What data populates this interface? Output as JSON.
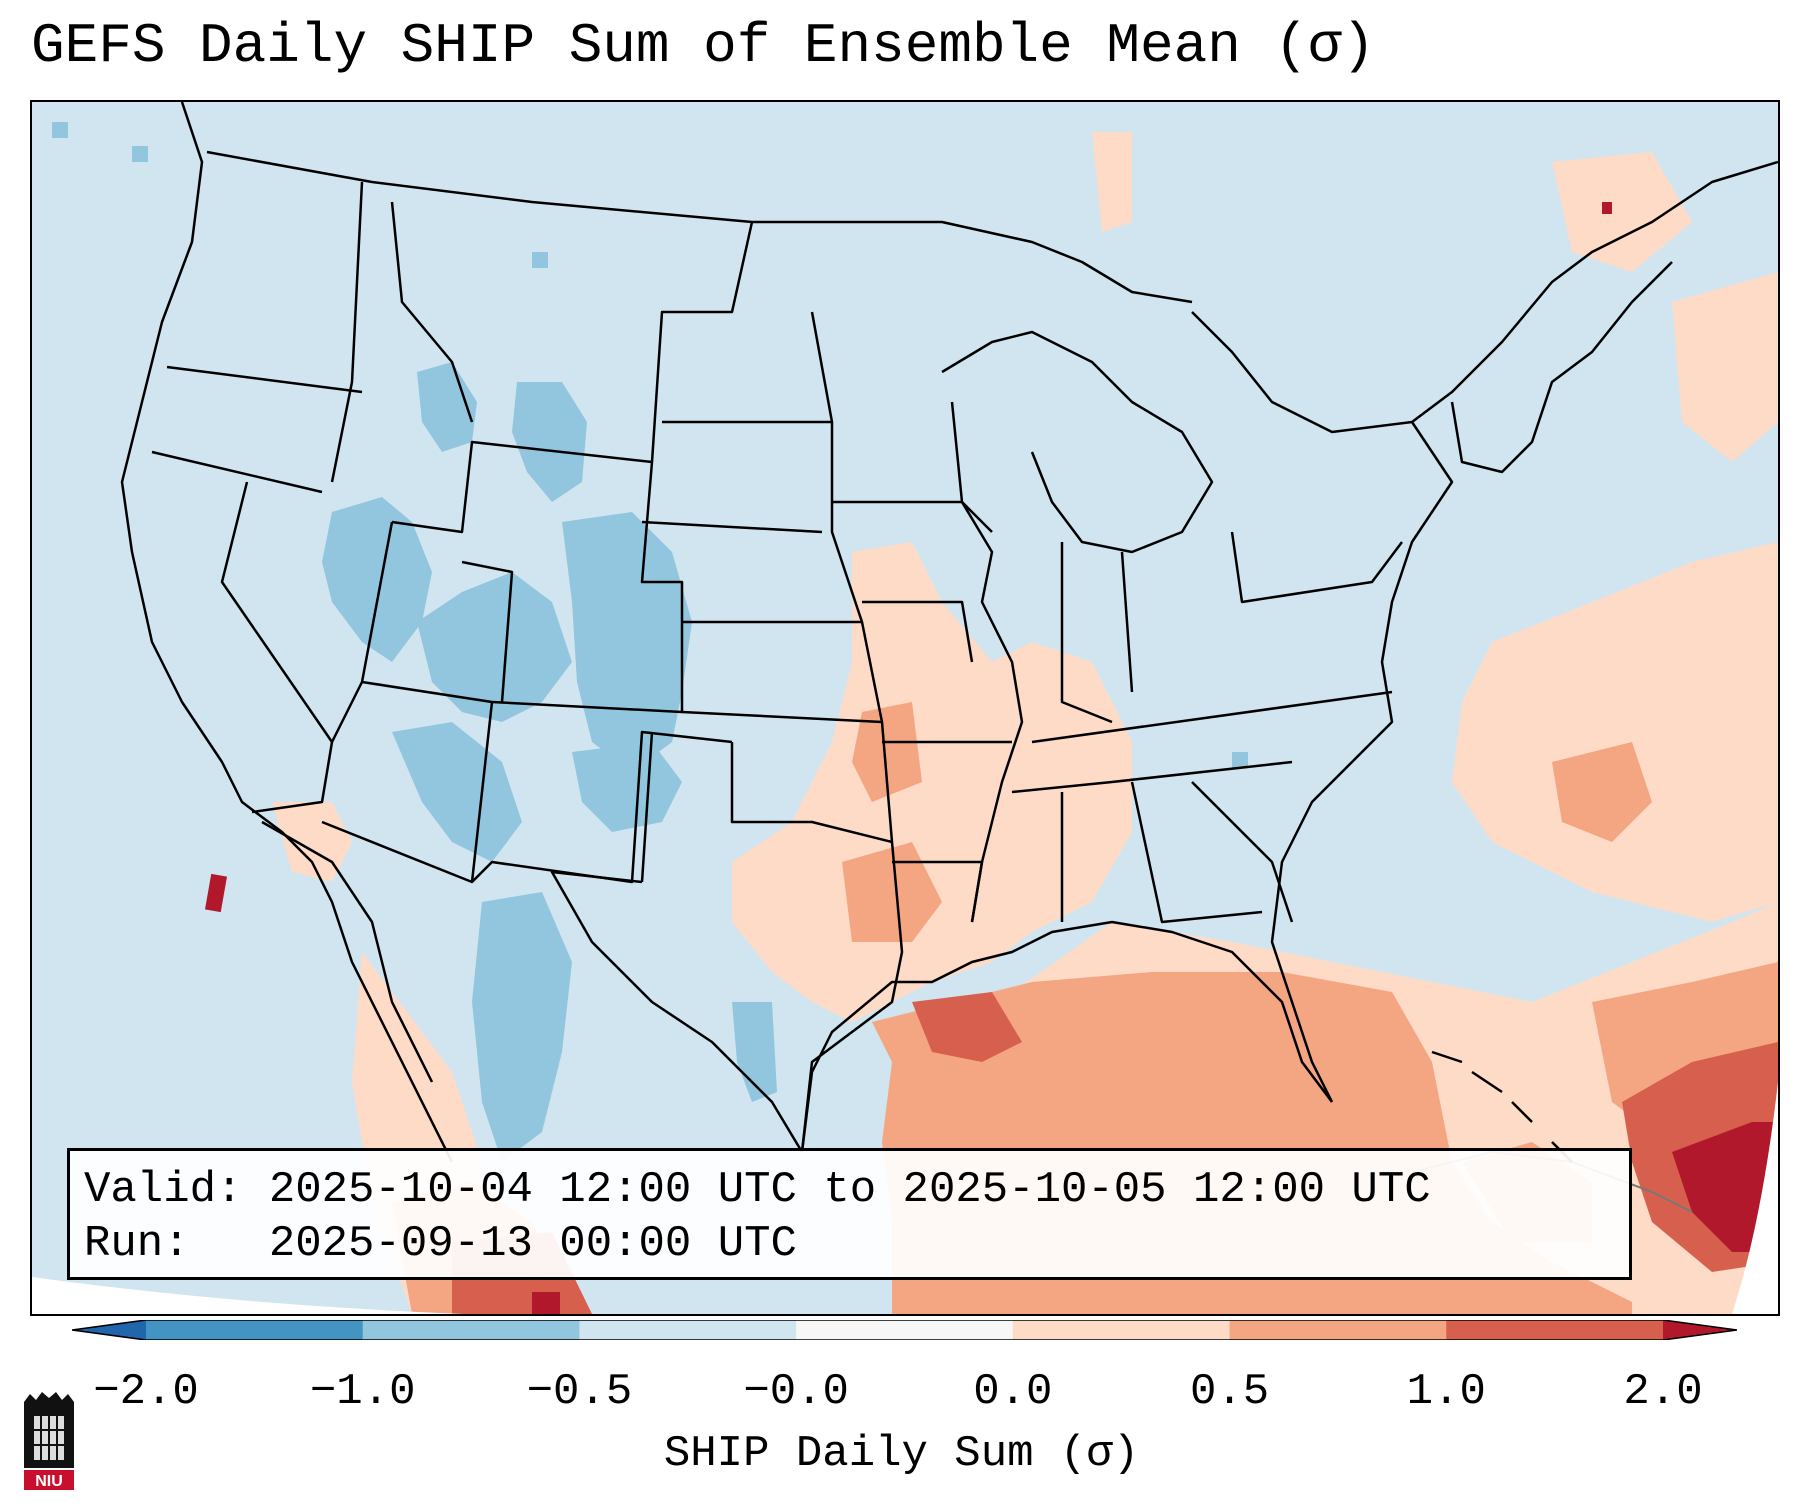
{
  "title": "GEFS Daily SHIP Sum of Ensemble Mean (σ)",
  "info": {
    "valid_label": "Valid:",
    "valid_value": "2025-10-04 12:00 UTC to 2025-10-05 12:00 UTC",
    "run_label": "Run:",
    "run_value": "2025-09-13 00:00 UTC"
  },
  "colorbar": {
    "label": "SHIP Daily Sum (σ)",
    "ticks": [
      "−2.0",
      "−1.0",
      "−0.5",
      "−0.0",
      "0.0",
      "0.5",
      "1.0",
      "2.0"
    ],
    "colors": [
      "#4393c3",
      "#92c5de",
      "#d1e5f0",
      "#f7f7f7",
      "#fddbc7",
      "#f4a582",
      "#d6604d"
    ],
    "extend_low": "#2166ac",
    "extend_high": "#b2182b"
  },
  "logo": {
    "text": "NIU"
  }
}
